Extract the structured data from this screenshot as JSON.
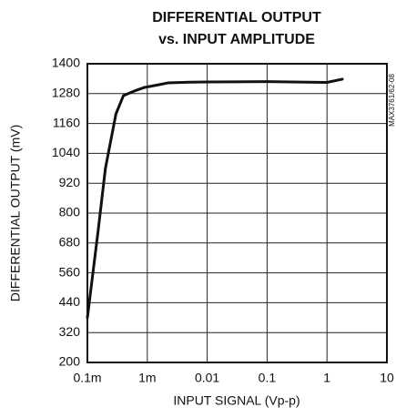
{
  "chart_data": {
    "type": "line",
    "title": [
      "DIFFERENTIAL OUTPUT",
      "vs. INPUT AMPLITUDE"
    ],
    "annotation": "MAX3761/62-08",
    "x_label": "INPUT SIGNAL (Vp-p)",
    "y_label": "DIFFERENTIAL OUTPUT (mV)",
    "x_scale": "log",
    "x": [
      0.0001,
      0.00015,
      0.0002,
      0.0003,
      0.0004,
      0.0006,
      0.0009,
      0.0015,
      0.0022,
      0.005,
      0.01,
      0.1,
      0.5,
      1,
      1.8
    ],
    "series": [
      {
        "name": "output",
        "color": "#111111",
        "values": [
          380,
          723,
          980,
          1199,
          1272,
          1290,
          1305,
          1315,
          1323,
          1326,
          1327,
          1328,
          1326,
          1325,
          1338
        ]
      }
    ],
    "xlim": [
      0.0001,
      10
    ],
    "xticks": [
      {
        "value": 0.0001,
        "label": "0.1m"
      },
      {
        "value": 0.001,
        "label": "1m"
      },
      0.01,
      0.1,
      1,
      10
    ],
    "ylim": [
      200,
      1400
    ],
    "yticks": [
      200,
      320,
      440,
      560,
      680,
      800,
      920,
      1040,
      1160,
      1280,
      1400
    ],
    "grid": true
  }
}
